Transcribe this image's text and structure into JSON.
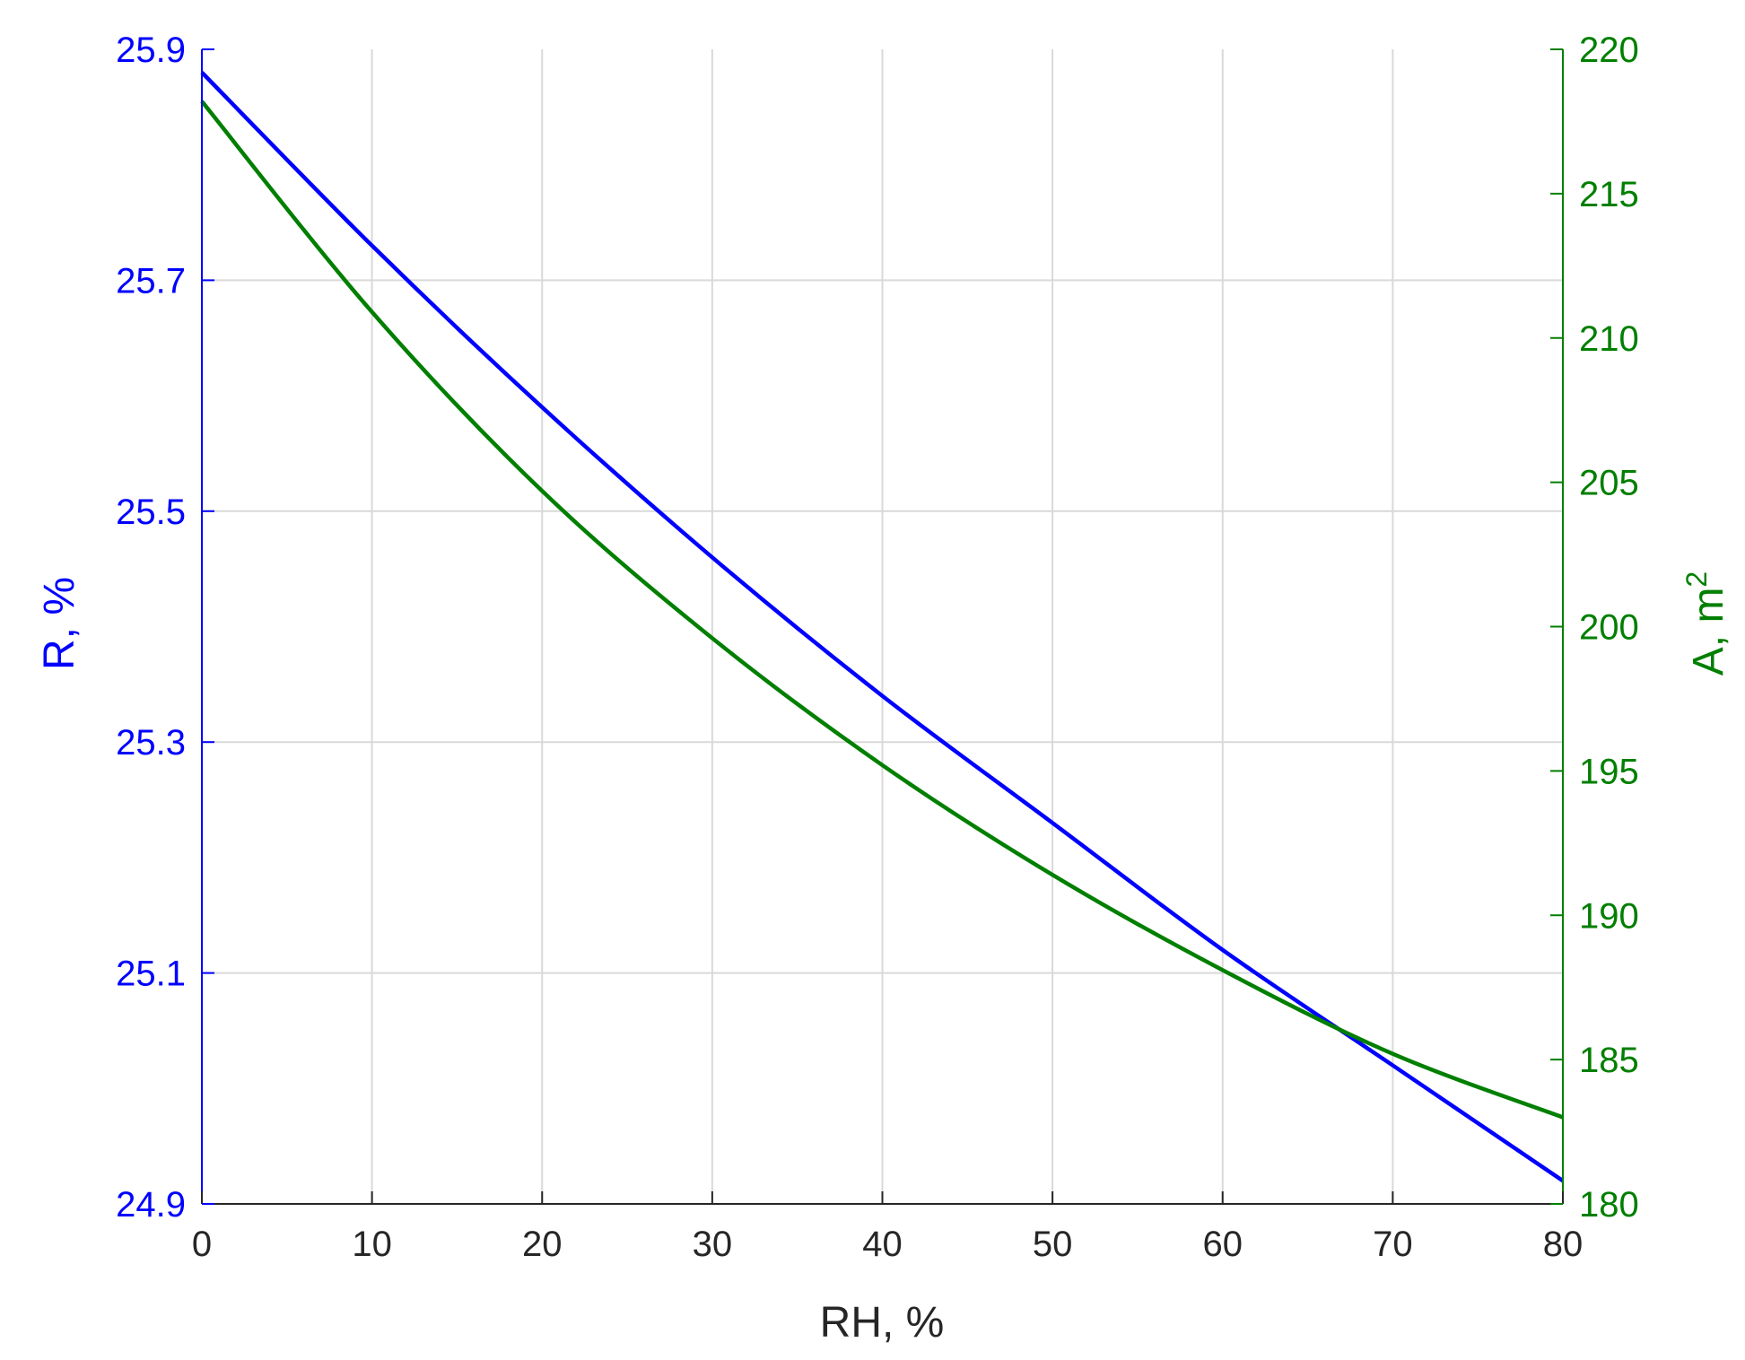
{
  "chart_data": {
    "type": "line",
    "xlabel": "RH, %",
    "ylabel_left": "R, %",
    "ylabel_right_base": "A, m",
    "ylabel_right_sup": "2",
    "xlim": [
      0,
      80
    ],
    "ylim_left": [
      24.9,
      25.9
    ],
    "ylim_right": [
      180,
      220
    ],
    "xticks": [
      0,
      10,
      20,
      30,
      40,
      50,
      60,
      70,
      80
    ],
    "yticks_left": [
      24.9,
      25.1,
      25.3,
      25.5,
      25.7,
      25.9
    ],
    "yticks_right": [
      180,
      185,
      190,
      195,
      200,
      205,
      210,
      215,
      220
    ],
    "xtick_labels": [
      "0",
      "10",
      "20",
      "30",
      "40",
      "50",
      "60",
      "70",
      "80"
    ],
    "ytick_labels_left": [
      "24.9",
      "25.1",
      "25.3",
      "25.5",
      "25.7",
      "25.9"
    ],
    "ytick_labels_right": [
      "180",
      "185",
      "190",
      "195",
      "200",
      "205",
      "210",
      "215",
      "220"
    ],
    "grid": true,
    "x": [
      0,
      10,
      20,
      30,
      40,
      50,
      60,
      70,
      80
    ],
    "series": [
      {
        "axis": "left",
        "color": "#0000ff",
        "values": [
          25.88,
          25.73,
          25.59,
          25.46,
          25.34,
          25.23,
          25.12,
          25.02,
          24.92
        ]
      },
      {
        "axis": "right",
        "color": "#007f00",
        "values": [
          218.2,
          210.9,
          204.7,
          199.6,
          195.2,
          191.4,
          188.1,
          185.2,
          183.0
        ]
      }
    ],
    "colors": {
      "left_axis": "#0000ff",
      "right_axis": "#007f00",
      "bottom_axis": "#262626",
      "grid": "#d9d9d9"
    }
  }
}
